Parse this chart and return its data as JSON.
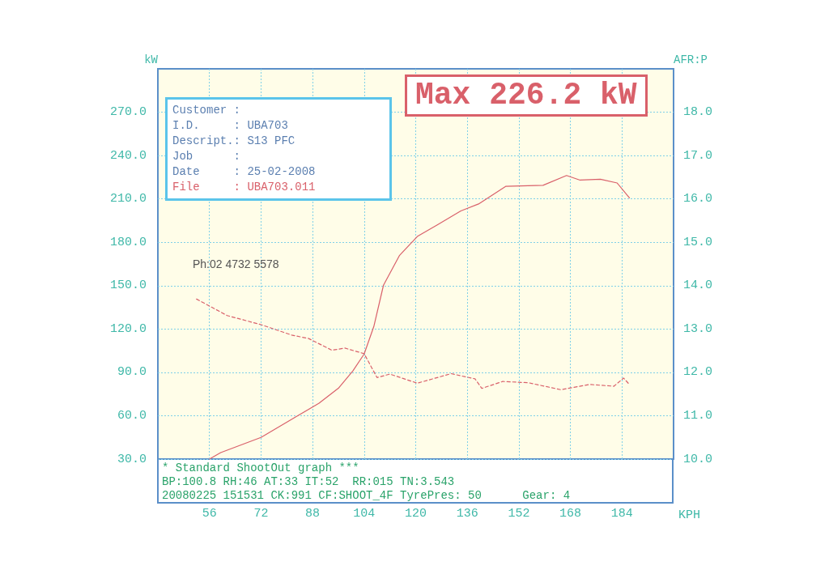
{
  "chart_data": {
    "type": "line",
    "title": "Max 226.2 kW",
    "xlabel": "KPH",
    "ylabel": "kW",
    "y2label": "AFR:P",
    "xlim": [
      40,
      200
    ],
    "xticks": [
      56,
      72,
      88,
      104,
      120,
      136,
      152,
      168,
      184
    ],
    "ylim": [
      30,
      300
    ],
    "yticks": [
      {
        "value": 30,
        "label": "30.0"
      },
      {
        "value": 60,
        "label": "60.0"
      },
      {
        "value": 90,
        "label": "90.0"
      },
      {
        "value": 120,
        "label": "120.0"
      },
      {
        "value": 150,
        "label": "150.0"
      },
      {
        "value": 180,
        "label": "180.0"
      },
      {
        "value": 210,
        "label": "210.0"
      },
      {
        "value": 240,
        "label": "240.0"
      },
      {
        "value": 270,
        "label": "270.0"
      }
    ],
    "y2lim": [
      10,
      19
    ],
    "y2ticks": [
      {
        "value": 10,
        "label": "10.0"
      },
      {
        "value": 11,
        "label": "11.0"
      },
      {
        "value": 12,
        "label": "12.0"
      },
      {
        "value": 13,
        "label": "13.0"
      },
      {
        "value": 14,
        "label": "14.0"
      },
      {
        "value": 15,
        "label": "15.0"
      },
      {
        "value": 16,
        "label": "16.0"
      },
      {
        "value": 17,
        "label": "17.0"
      },
      {
        "value": 18,
        "label": "18.0"
      }
    ],
    "grid": true,
    "marker": "none",
    "series": [
      {
        "color": "#d9606a",
        "line_style": "solid",
        "x": [
          56,
          59.5,
          72,
          83.8,
          90,
          96,
          100.5,
          104,
          107,
          110,
          115,
          120.5,
          126.7,
          134,
          139.5,
          147.9,
          159.5,
          166.8,
          171,
          177.3,
          182.5,
          186.3
        ],
        "values": [
          30,
          34.5,
          45,
          60.5,
          68.6,
          79,
          91,
          102.7,
          121.7,
          150.3,
          171,
          184,
          192,
          201.7,
          206.5,
          218.7,
          219.4,
          226.2,
          223,
          223.6,
          221,
          210.7
        ]
      },
      {
        "color": "#d9606a",
        "line_style": "dashed",
        "axis": "y2",
        "x": [
          52,
          61.5,
          72,
          81.5,
          86.8,
          94,
          98,
          104,
          108,
          112,
          120.5,
          131,
          138.4,
          140.5,
          147,
          155,
          165,
          174,
          181.5,
          184.5,
          186.3
        ],
        "values": [
          13.69,
          13.31,
          13.1,
          12.86,
          12.78,
          12.51,
          12.56,
          12.43,
          11.88,
          11.96,
          11.75,
          11.97,
          11.85,
          11.63,
          11.79,
          11.76,
          11.6,
          11.72,
          11.68,
          11.87,
          11.72
        ]
      }
    ],
    "annotations": [
      "Customer :",
      "I.D.     : UBA703",
      "Descript.: S13 PFC",
      "Job      :",
      "Date     : 25-02-2008",
      "File     : UBA703.011",
      "Ph:02 4732 5578",
      "* Standard ShootOut graph ***",
      "BP:100.8 RH:46 AT:33 IT:52  RR:015 TN:3.543",
      "20080225 151531 CK:991 CF:SHOOT_4F TyrePres: 50      Gear: 4"
    ]
  }
}
